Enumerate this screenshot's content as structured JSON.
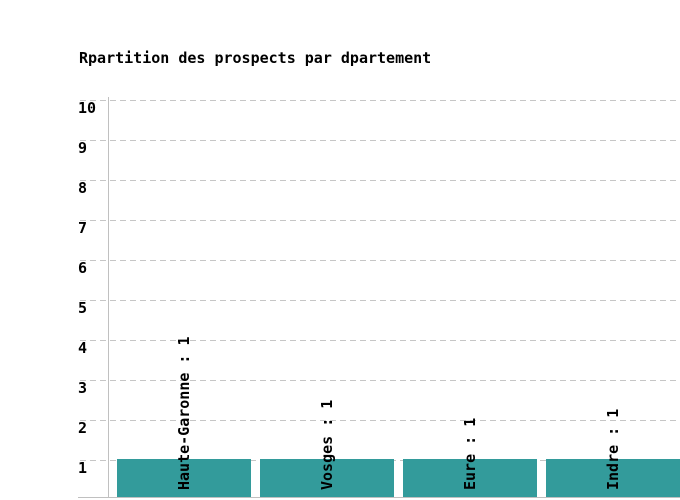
{
  "chart_data": {
    "type": "bar",
    "title": "Rpartition des prospects par dpartement",
    "categories": [
      "Haute-Garonne",
      "Vosges",
      "Eure",
      "Indre"
    ],
    "values": [
      1,
      1,
      1,
      1
    ],
    "bar_labels": [
      "Haute-Garonne : 1",
      "Vosges : 1",
      "Eure : 1",
      "Indre : 1"
    ],
    "y_ticks": [
      10,
      9,
      8,
      7,
      6,
      5,
      4,
      3,
      2,
      1
    ],
    "ylim": [
      0,
      10
    ],
    "xlabel": "",
    "ylabel": "",
    "legend": "none",
    "grid": "horizontal-dashed",
    "bar_label_rotation_deg": -90,
    "colors": {
      "bar": "#339B9B",
      "text": "#000000",
      "grid": "#C6C6C6",
      "axis": "#C0C0C0",
      "background": "#FFFFFF"
    }
  }
}
